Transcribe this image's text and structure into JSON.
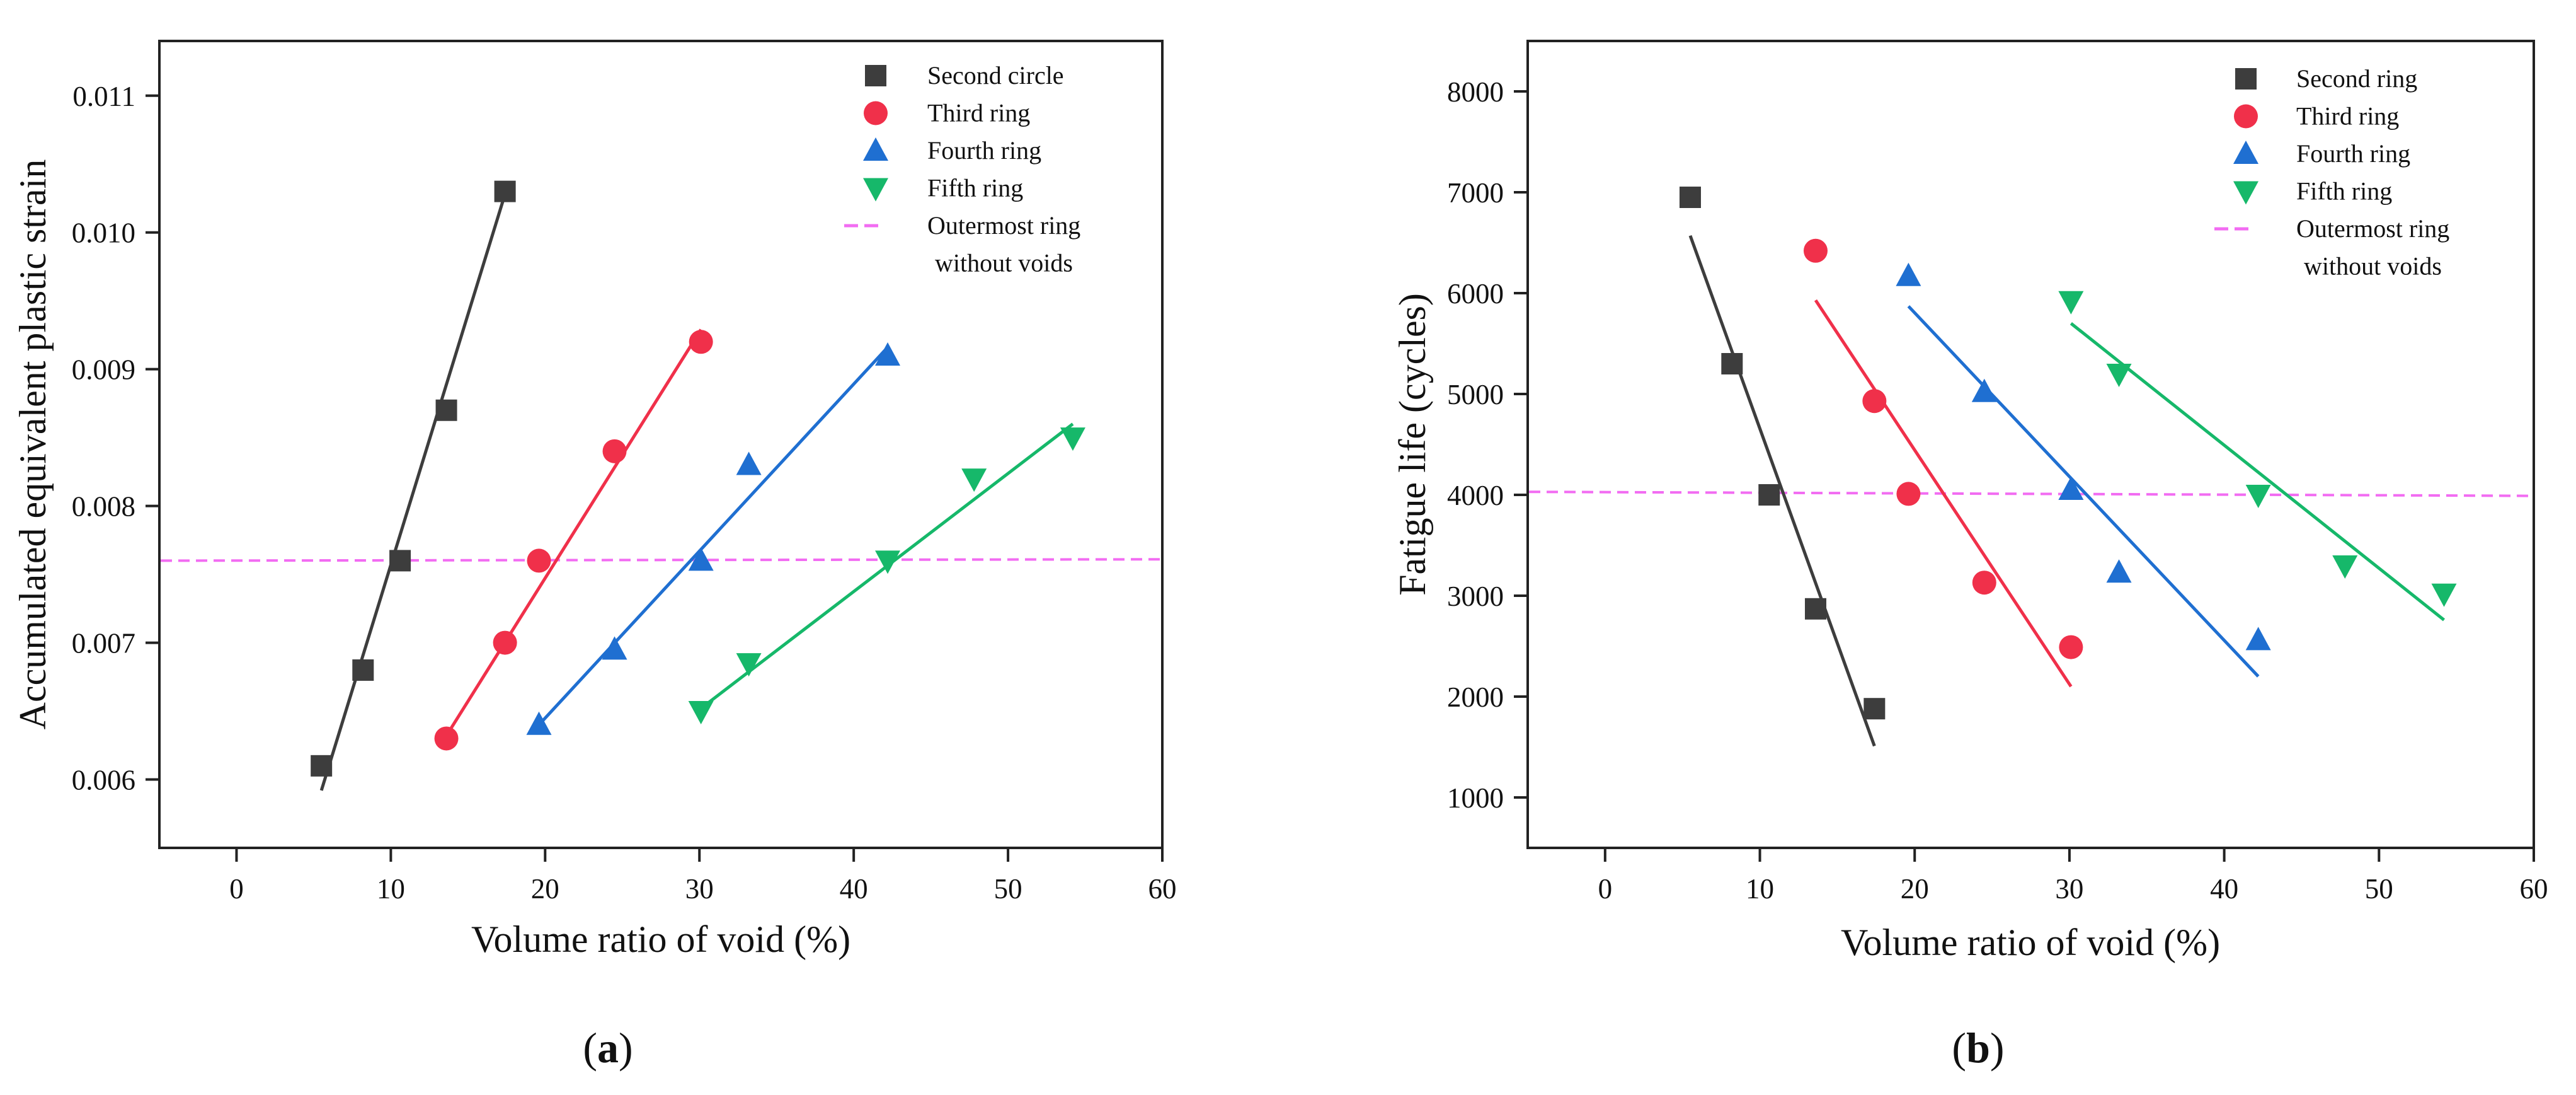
{
  "colors": {
    "series": [
      "#3d3d3d",
      "#f0304a",
      "#1f6fd1",
      "#16b86a"
    ],
    "reference": "#f26cf2",
    "axis": "#222222"
  },
  "chart_data": [
    {
      "type": "scatter",
      "panel_label": "(a)",
      "panel_letter": "a",
      "xlabel": "Volume ratio of void (%)",
      "ylabel": "Accumulated equivalent plastic strain",
      "xlim": [
        -5,
        60
      ],
      "ylim": [
        0.0055,
        0.0114
      ],
      "xticks": [
        0,
        10,
        20,
        30,
        40,
        50,
        60
      ],
      "yticks": [
        0.006,
        0.007,
        0.008,
        0.009,
        0.01,
        0.011
      ],
      "ytick_labels": [
        "0.006",
        "0.007",
        "0.008",
        "0.009",
        "0.010",
        "0.011"
      ],
      "grid": false,
      "legend_position": "top-right",
      "series": [
        {
          "name": "Second circle",
          "marker": "square",
          "color": "#3d3d3d",
          "points": [
            [
              5.5,
              0.0061
            ],
            [
              8.2,
              0.0068
            ],
            [
              10.6,
              0.0076
            ],
            [
              13.6,
              0.0087
            ],
            [
              17.4,
              0.0103
            ]
          ],
          "fit": [
            [
              5.5,
              0.00592
            ],
            [
              17.4,
              0.01028
            ]
          ]
        },
        {
          "name": "Third ring",
          "marker": "circle",
          "color": "#f0304a",
          "points": [
            [
              13.6,
              0.0063
            ],
            [
              17.4,
              0.007
            ],
            [
              19.6,
              0.0076
            ],
            [
              24.5,
              0.0084
            ],
            [
              30.1,
              0.0092
            ]
          ],
          "fit": [
            [
              13.6,
              0.00632
            ],
            [
              30.1,
              0.00929
            ]
          ]
        },
        {
          "name": "Fourth ring",
          "marker": "triangle-up",
          "color": "#1f6fd1",
          "points": [
            [
              19.6,
              0.0064
            ],
            [
              24.5,
              0.00695
            ],
            [
              30.1,
              0.0076
            ],
            [
              33.2,
              0.0083
            ],
            [
              42.2,
              0.0091
            ]
          ],
          "fit": [
            [
              19.6,
              0.0064
            ],
            [
              42.2,
              0.00916
            ]
          ]
        },
        {
          "name": "Fifth ring",
          "marker": "triangle-down",
          "color": "#16b86a",
          "points": [
            [
              30.1,
              0.0065
            ],
            [
              33.2,
              0.00685
            ],
            [
              42.2,
              0.0076
            ],
            [
              47.8,
              0.0082
            ],
            [
              54.2,
              0.0085
            ]
          ],
          "fit": [
            [
              30.1,
              0.00652
            ],
            [
              54.2,
              0.0086
            ]
          ]
        },
        {
          "name": "Outermost ring\nwithout voids",
          "legend_lines": [
            "Outermost ring",
            "without voids"
          ],
          "marker": "dashed-line",
          "color": "#f26cf2",
          "line": [
            [
              -5,
              0.0076
            ],
            [
              60,
              0.00761
            ]
          ]
        }
      ]
    },
    {
      "type": "scatter",
      "panel_label": "(b)",
      "panel_letter": "b",
      "xlabel": "Volume ratio of void (%)",
      "ylabel": "Fatigue life (cycles)",
      "xlim": [
        -5,
        60
      ],
      "ylim": [
        500,
        8500
      ],
      "xticks": [
        0,
        10,
        20,
        30,
        40,
        50,
        60
      ],
      "yticks": [
        1000,
        2000,
        3000,
        4000,
        5000,
        6000,
        7000,
        8000
      ],
      "ytick_labels": [
        "1000",
        "2000",
        "3000",
        "4000",
        "5000",
        "6000",
        "7000",
        "8000"
      ],
      "grid": false,
      "legend_position": "top-right",
      "series": [
        {
          "name": "Second ring",
          "marker": "square",
          "color": "#3d3d3d",
          "points": [
            [
              5.5,
              6950
            ],
            [
              8.2,
              5300
            ],
            [
              10.6,
              4000
            ],
            [
              13.6,
              2870
            ],
            [
              17.4,
              1880
            ]
          ],
          "fit": [
            [
              5.5,
              6570
            ],
            [
              17.4,
              1510
            ]
          ]
        },
        {
          "name": "Third ring",
          "marker": "circle",
          "color": "#f0304a",
          "points": [
            [
              13.6,
              6420
            ],
            [
              17.4,
              4930
            ],
            [
              19.6,
              4010
            ],
            [
              24.5,
              3130
            ],
            [
              30.1,
              2490
            ]
          ],
          "fit": [
            [
              13.6,
              5930
            ],
            [
              30.1,
              2100
            ]
          ]
        },
        {
          "name": "Fourth ring",
          "marker": "triangle-up",
          "color": "#1f6fd1",
          "points": [
            [
              19.6,
              6170
            ],
            [
              24.5,
              5020
            ],
            [
              30.1,
              4050
            ],
            [
              33.2,
              3230
            ],
            [
              42.2,
              2560
            ]
          ],
          "fit": [
            [
              19.6,
              5870
            ],
            [
              42.2,
              2200
            ]
          ]
        },
        {
          "name": "Fifth ring",
          "marker": "triangle-down",
          "color": "#16b86a",
          "points": [
            [
              30.1,
              5920
            ],
            [
              33.2,
              5200
            ],
            [
              42.2,
              4000
            ],
            [
              47.8,
              3300
            ],
            [
              54.2,
              3020
            ]
          ],
          "fit": [
            [
              30.1,
              5700
            ],
            [
              54.2,
              2760
            ]
          ]
        },
        {
          "name": "Outermost ring\nwithout voids",
          "legend_lines": [
            "Outermost ring",
            "without voids"
          ],
          "marker": "dashed-line",
          "color": "#f26cf2",
          "line": [
            [
              -5,
              4030
            ],
            [
              60,
              3990
            ]
          ]
        }
      ]
    }
  ]
}
